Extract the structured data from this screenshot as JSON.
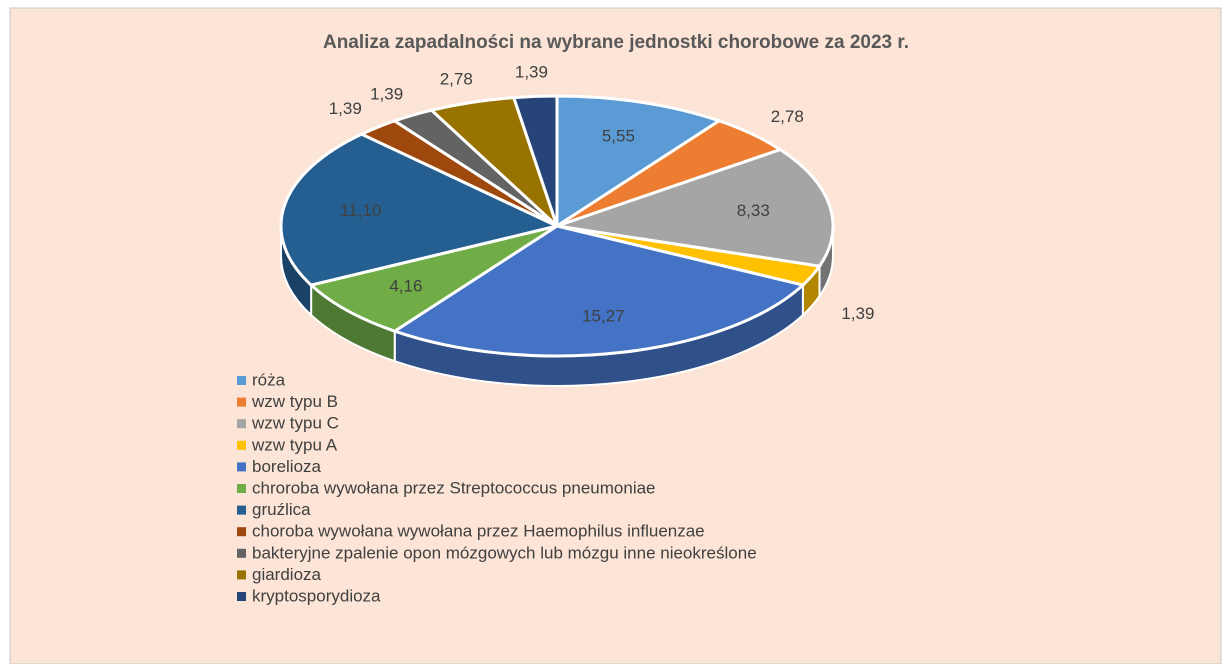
{
  "chart_data": {
    "type": "pie3d",
    "title": "Analiza zapadalności na wybrane jednostki chorobowe za 2023 r.",
    "categories": [
      "róża",
      "wzw typu B",
      "wzw typu C",
      "wzw typu A",
      "borelioza",
      "chroroba wywołana przez Streptococcus pneumoniae",
      "gruźlica",
      "choroba wywołana wywołana przez Haemophilus influenzae",
      "bakteryjne zpalenie opon mózgowych lub mózgu inne nieokreślone",
      "giardioza",
      "kryptosporydioza"
    ],
    "values": [
      5.55,
      2.78,
      8.33,
      1.39,
      15.27,
      4.16,
      11.1,
      1.39,
      1.39,
      2.78,
      1.39
    ],
    "value_labels": [
      "5,55",
      "2,78",
      "8,33",
      "1,39",
      "15,27",
      "4,16",
      "11,10",
      "1,39",
      "1,39",
      "2,78",
      "1,39"
    ],
    "colors": [
      "#5b9bd5",
      "#ed7d31",
      "#a5a5a5",
      "#ffc000",
      "#4472c4",
      "#70ad47",
      "#255e91",
      "#9e480e",
      "#636363",
      "#997300",
      "#264478"
    ],
    "legend": "bottom-left"
  }
}
